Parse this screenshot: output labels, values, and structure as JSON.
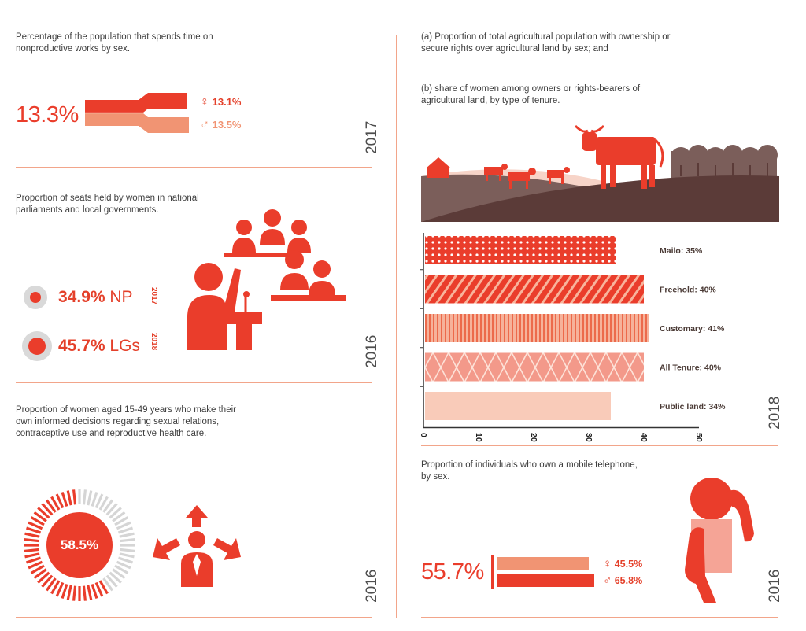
{
  "colors": {
    "accent": "#ea3d2b",
    "accent_light": "#f19473",
    "pale": "#f9cbb9",
    "divider": "#f2a58a",
    "hill_dark": "#5b3b38",
    "hill_mid": "#7b5e5a"
  },
  "panel1": {
    "caption": "Percentage of the population that spends time on nonproductive works by sex.",
    "total": "13.3%",
    "female_symbol": "♀",
    "female_value": "13.1%",
    "male_symbol": "♂",
    "male_value": "13.5%",
    "year": "2017"
  },
  "panel2": {
    "caption": "Proportion of seats held by women in national parliaments  and local governments.",
    "np_value": "34.9%",
    "np_label": "NP",
    "np_year": "2017",
    "lg_value": "45.7%",
    "lg_label": "LGs",
    "lg_year": "2018",
    "year": "2016"
  },
  "panel3": {
    "caption": "Proportion of women aged 15-49 years who make their own informed decisions regarding sexual relations, contraceptive use and reproductive health care.",
    "value": "58.5%",
    "progress_fraction": 0.585,
    "year": "2016"
  },
  "panel4": {
    "caption_a": "(a) Proportion of total agricultural population with ownership or secure rights over agricultural land by sex; and",
    "caption_b": "(b) share of women among owners or rights-bearers of agricultural land, by type of tenure.",
    "year": "2018"
  },
  "chart_data": {
    "type": "bar",
    "orientation": "horizontal",
    "categories": [
      "Mailo",
      "Freehold",
      "Customary",
      "All Tenure",
      "Public land"
    ],
    "values": [
      35,
      40,
      41,
      40,
      34
    ],
    "labels": [
      "Mailo: 35%",
      "Freehold: 40%",
      "Customary: 41%",
      "All Tenure: 40%",
      "Public land: 34%"
    ],
    "xlim": [
      0,
      50
    ],
    "ticks": [
      "0",
      "10",
      "20",
      "30",
      "40",
      "50"
    ],
    "patterns": [
      "dots",
      "diagonal",
      "vertical",
      "crosshatch",
      "solid-pale"
    ]
  },
  "panel5": {
    "caption": "Proportion of individuals who own a mobile telephone, by sex.",
    "total": "55.7%",
    "female_symbol": "♀",
    "female_value": "45.5%",
    "male_symbol": "♂",
    "male_value": "65.8%",
    "year": "2016"
  }
}
